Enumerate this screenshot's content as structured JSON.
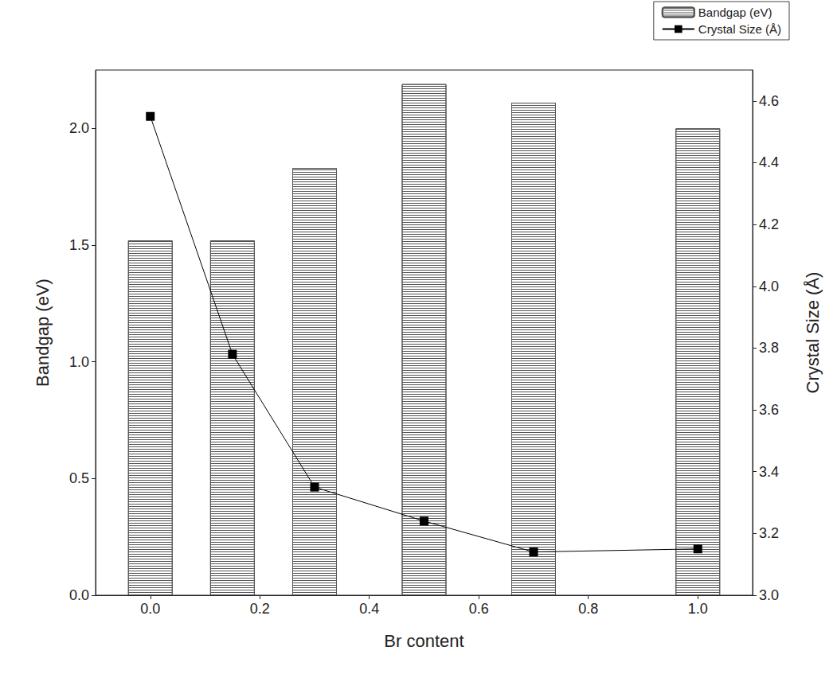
{
  "chart_data": {
    "type": "bar",
    "x_label": "Br content",
    "y_label": "Bandgap (eV)",
    "y2_label": "Crystal Size (Å)",
    "x": [
      0.0,
      0.15,
      0.3,
      0.5,
      0.7,
      1.0
    ],
    "series": [
      {
        "name": "Bandgap (eV)",
        "type": "bar",
        "color": "#555555",
        "values": [
          1.52,
          1.52,
          1.83,
          2.19,
          2.11,
          2.0
        ]
      },
      {
        "name": "Crystal Size (Å)",
        "type": "line",
        "axis": "y2",
        "color": "#000000",
        "marker": "square",
        "line_style": "solid",
        "values": [
          4.55,
          3.78,
          3.35,
          3.24,
          3.14,
          3.15
        ]
      }
    ],
    "xlim": [
      -0.1,
      1.1
    ],
    "xticks": [
      {
        "value": 0.0,
        "label": "0.0"
      },
      {
        "value": 0.2,
        "label": "0.2"
      },
      {
        "value": 0.4,
        "label": "0.4"
      },
      {
        "value": 0.6,
        "label": "0.6"
      },
      {
        "value": 0.8,
        "label": "0.8"
      },
      {
        "value": 1.0,
        "label": "1.0"
      }
    ],
    "ylim": [
      0,
      2.25
    ],
    "yticks": [
      {
        "value": 0,
        "label": "0.0"
      },
      {
        "value": 0.5,
        "label": "0.5"
      },
      {
        "value": 1.0,
        "label": "1.0"
      },
      {
        "value": 1.5,
        "label": "1.5"
      },
      {
        "value": 2.0,
        "label": "2.0"
      }
    ],
    "y2lim": [
      3.0,
      4.7
    ],
    "y2ticks": [
      {
        "value": 3.0,
        "label": "3.0"
      },
      {
        "value": 3.2,
        "label": "3.2"
      },
      {
        "value": 3.4,
        "label": "3.4"
      },
      {
        "value": 3.6,
        "label": "3.6"
      },
      {
        "value": 3.8,
        "label": "3.8"
      },
      {
        "value": 4.0,
        "label": "4.0"
      },
      {
        "value": 4.2,
        "label": "4.2"
      },
      {
        "value": 4.4,
        "label": "4.4"
      },
      {
        "value": 4.6,
        "label": "4.6"
      }
    ],
    "grid": false,
    "legend": "upper right"
  }
}
